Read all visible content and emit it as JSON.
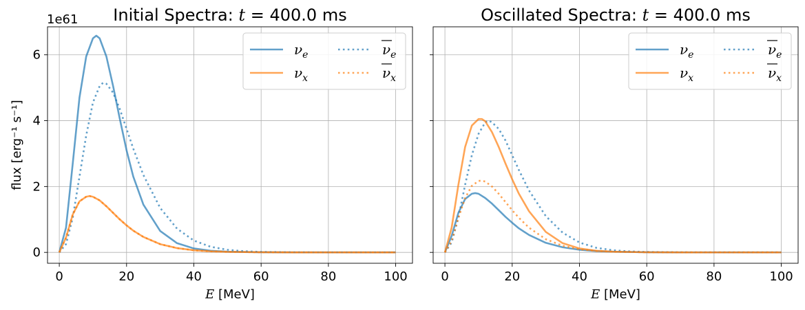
{
  "chart_data": [
    {
      "type": "line",
      "title_prefix": "Initial Spectra: ",
      "title_var": "t",
      "title_value": " = 400.0 ms",
      "xlabel_var": "E",
      "xlabel_unit": " [MeV]",
      "ylabel": "flux [erg⁻¹ s⁻¹]",
      "y_offset_text": "1e61",
      "xlim": [
        -3.5,
        105
      ],
      "ylim": [
        -0.33,
        6.85
      ],
      "xticks": [
        "0",
        "20",
        "40",
        "60",
        "80",
        "100"
      ],
      "xtick_values": [
        0,
        20,
        40,
        60,
        80,
        100
      ],
      "yticks": [
        "0",
        "2",
        "4",
        "6"
      ],
      "ytick_values": [
        0,
        2,
        4,
        6
      ],
      "grid": true,
      "legend_position": "upper right",
      "legend_columns": 2,
      "series": [
        {
          "name": "νe",
          "base": "ν",
          "sub": "e",
          "bar": false,
          "color": "#1f77b4",
          "style": "solid",
          "x": [
            0,
            2,
            4,
            6,
            8,
            10,
            11,
            12,
            14,
            16,
            18,
            20,
            22,
            25,
            30,
            35,
            40,
            45,
            50,
            60,
            70,
            80,
            90,
            100
          ],
          "values": [
            0,
            0.75,
            2.7,
            4.7,
            5.95,
            6.5,
            6.58,
            6.5,
            5.95,
            5.05,
            4.05,
            3.1,
            2.3,
            1.45,
            0.65,
            0.28,
            0.12,
            0.05,
            0.02,
            0.005,
            0,
            0,
            0,
            0
          ]
        },
        {
          "name": "ν̄e",
          "base": "ν",
          "sub": "e",
          "bar": true,
          "color": "#1f77b4",
          "style": "dotted",
          "x": [
            0,
            2,
            4,
            6,
            8,
            10,
            12,
            13,
            14,
            16,
            18,
            20,
            22,
            25,
            30,
            35,
            40,
            45,
            50,
            55,
            60,
            70,
            80,
            90,
            100
          ],
          "values": [
            0,
            0.25,
            1.05,
            2.3,
            3.55,
            4.55,
            5.05,
            5.15,
            5.12,
            4.85,
            4.35,
            3.75,
            3.15,
            2.35,
            1.35,
            0.72,
            0.36,
            0.17,
            0.08,
            0.035,
            0.015,
            0.003,
            0,
            0,
            0
          ]
        },
        {
          "name": "νx",
          "base": "ν",
          "sub": "x",
          "bar": false,
          "color": "#ff7f0e",
          "style": "solid",
          "x": [
            0,
            2,
            4,
            6,
            8,
            9,
            10,
            12,
            14,
            16,
            18,
            20,
            22,
            25,
            30,
            35,
            40,
            45,
            50,
            60,
            70,
            80,
            90,
            100
          ],
          "values": [
            0,
            0.45,
            1.15,
            1.55,
            1.69,
            1.71,
            1.69,
            1.58,
            1.4,
            1.2,
            1.0,
            0.82,
            0.66,
            0.47,
            0.25,
            0.13,
            0.065,
            0.032,
            0.015,
            0.004,
            0.001,
            0,
            0,
            0
          ]
        },
        {
          "name": "ν̄x",
          "base": "ν",
          "sub": "x",
          "bar": true,
          "color": "#ff7f0e",
          "style": "dotted",
          "x": [
            0,
            2,
            4,
            6,
            8,
            9,
            10,
            12,
            14,
            16,
            18,
            20,
            22,
            25,
            30,
            35,
            40,
            45,
            50,
            60,
            70,
            80,
            90,
            100
          ],
          "values": [
            0,
            0.45,
            1.15,
            1.55,
            1.69,
            1.71,
            1.69,
            1.58,
            1.4,
            1.2,
            1.0,
            0.82,
            0.66,
            0.47,
            0.25,
            0.13,
            0.065,
            0.032,
            0.015,
            0.004,
            0.001,
            0,
            0,
            0
          ]
        }
      ]
    },
    {
      "type": "line",
      "title_prefix": "Oscillated Spectra: ",
      "title_var": "t",
      "title_value": " = 400.0 ms",
      "xlabel_var": "E",
      "xlabel_unit": " [MeV]",
      "ylabel": "",
      "xlim": [
        -3.5,
        105
      ],
      "ylim": [
        -0.33,
        6.85
      ],
      "xticks": [
        "0",
        "20",
        "40",
        "60",
        "80",
        "100"
      ],
      "xtick_values": [
        0,
        20,
        40,
        60,
        80,
        100
      ],
      "yticks": [],
      "ytick_values": [
        0,
        2,
        4,
        6
      ],
      "grid": true,
      "legend_position": "upper right",
      "legend_columns": 2,
      "series": [
        {
          "name": "νe",
          "base": "ν",
          "sub": "e",
          "bar": false,
          "color": "#1f77b4",
          "style": "solid",
          "x": [
            0,
            2,
            4,
            6,
            8,
            9,
            10,
            12,
            14,
            16,
            18,
            20,
            22,
            25,
            30,
            35,
            40,
            45,
            50,
            60,
            70,
            80,
            90,
            100
          ],
          "values": [
            0,
            0.5,
            1.2,
            1.62,
            1.78,
            1.8,
            1.78,
            1.65,
            1.48,
            1.28,
            1.08,
            0.9,
            0.73,
            0.53,
            0.29,
            0.155,
            0.08,
            0.04,
            0.02,
            0.005,
            0.001,
            0,
            0,
            0
          ]
        },
        {
          "name": "ν̄e",
          "base": "ν",
          "sub": "e",
          "bar": true,
          "color": "#1f77b4",
          "style": "dotted",
          "x": [
            0,
            2,
            4,
            6,
            8,
            10,
            12,
            13,
            14,
            16,
            18,
            20,
            22,
            25,
            30,
            35,
            40,
            45,
            50,
            55,
            60,
            70,
            80,
            90,
            100
          ],
          "values": [
            0,
            0.3,
            1.05,
            2.05,
            2.95,
            3.6,
            3.95,
            4.0,
            3.95,
            3.75,
            3.4,
            2.95,
            2.5,
            1.88,
            1.1,
            0.6,
            0.3,
            0.14,
            0.065,
            0.03,
            0.013,
            0.002,
            0,
            0,
            0
          ]
        },
        {
          "name": "νx",
          "base": "ν",
          "sub": "x",
          "bar": false,
          "color": "#ff7f0e",
          "style": "solid",
          "x": [
            0,
            2,
            4,
            6,
            8,
            10,
            11,
            12,
            14,
            16,
            18,
            20,
            22,
            25,
            30,
            35,
            40,
            45,
            50,
            60,
            70,
            80,
            90,
            100
          ],
          "values": [
            0,
            0.75,
            2.05,
            3.2,
            3.85,
            4.05,
            4.05,
            3.98,
            3.65,
            3.2,
            2.7,
            2.22,
            1.78,
            1.25,
            0.62,
            0.28,
            0.12,
            0.05,
            0.02,
            0.004,
            0,
            0,
            0,
            0
          ]
        },
        {
          "name": "ν̄x",
          "base": "ν",
          "sub": "x",
          "bar": true,
          "color": "#ff7f0e",
          "style": "dotted",
          "x": [
            0,
            2,
            4,
            6,
            8,
            10,
            11,
            12,
            14,
            16,
            18,
            20,
            22,
            25,
            30,
            35,
            40,
            45,
            50,
            60,
            70,
            80,
            90,
            100
          ],
          "values": [
            0,
            0.35,
            1.05,
            1.65,
            2.02,
            2.17,
            2.18,
            2.15,
            2.0,
            1.78,
            1.53,
            1.28,
            1.05,
            0.75,
            0.4,
            0.2,
            0.095,
            0.044,
            0.02,
            0.004,
            0.001,
            0,
            0,
            0
          ]
        }
      ]
    }
  ]
}
